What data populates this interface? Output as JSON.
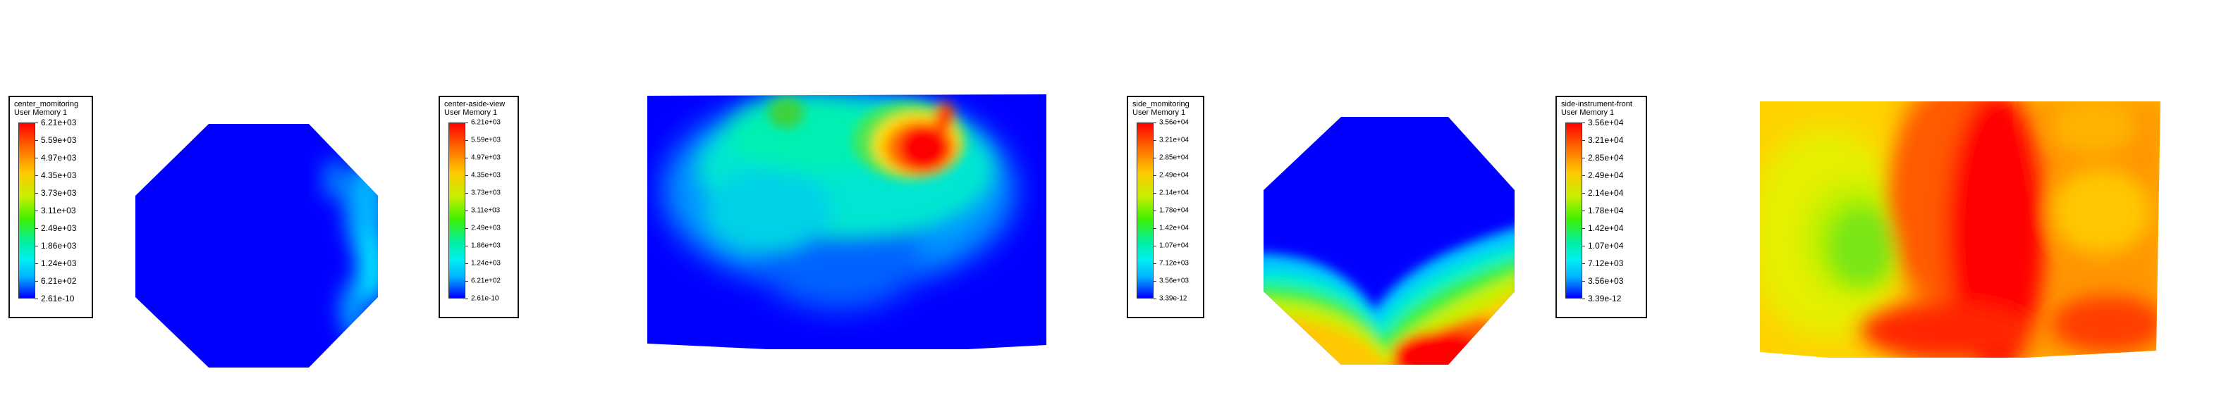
{
  "legends": [
    {
      "id": "center_monitoring",
      "title": "center_momitoring",
      "subtitle": "User Memory 1",
      "labels": [
        "6.21e+03",
        "5.59e+03",
        "4.97e+03",
        "4.35e+03",
        "3.73e+03",
        "3.11e+03",
        "2.49e+03",
        "1.86e+03",
        "1.24e+03",
        "6.21e+02",
        "2.61e-10"
      ]
    },
    {
      "id": "center_aside_view",
      "title": "center-aside-view",
      "subtitle": "User Memory 1",
      "labels": [
        "6.21e+03",
        "5.59e+03",
        "4.97e+03",
        "4.35e+03",
        "3.73e+03",
        "3.11e+03",
        "2.49e+03",
        "1.86e+03",
        "1.24e+03",
        "6.21e+02",
        "2.61e-10"
      ]
    },
    {
      "id": "side_monitoring",
      "title": "side_momitoring",
      "subtitle": "User Memory 1",
      "labels": [
        "3.56e+04",
        "3.21e+04",
        "2.85e+04",
        "2.49e+04",
        "2.14e+04",
        "1.78e+04",
        "1.42e+04",
        "1.07e+04",
        "7.12e+03",
        "3.56e+03",
        "3.39e-12"
      ]
    },
    {
      "id": "side_instrument_front",
      "title": "side-instrument-front",
      "subtitle": "User Memory 1",
      "labels": [
        "3.56e+04",
        "3.21e+04",
        "2.85e+04",
        "2.49e+04",
        "2.14e+04",
        "1.78e+04",
        "1.42e+04",
        "1.07e+04",
        "7.12e+03",
        "3.56e+03",
        "3.39e-12"
      ]
    }
  ]
}
